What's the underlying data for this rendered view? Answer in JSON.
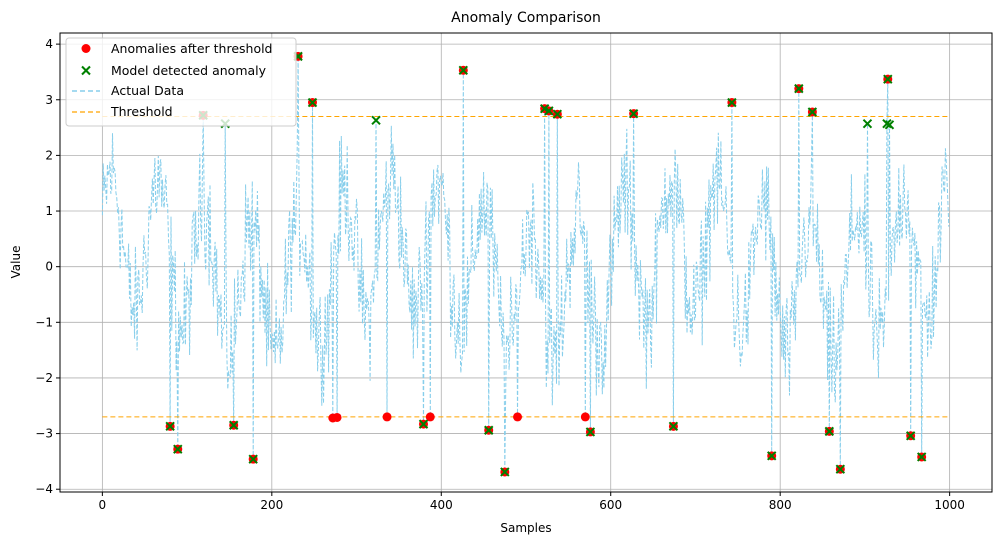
{
  "chart_data": {
    "type": "scatter",
    "title": "Anomaly Comparison",
    "xlabel": "Samples",
    "ylabel": "Value",
    "xlim": [
      -50,
      1050
    ],
    "ylim": [
      -4.05,
      4.2
    ],
    "x_ticks": [
      0,
      200,
      400,
      600,
      800,
      1000
    ],
    "y_ticks": [
      -4,
      -3,
      -2,
      -1,
      0,
      1,
      2,
      3,
      4
    ],
    "grid": true,
    "legend_position": "top-left",
    "colors": {
      "actual": "#87ceeb",
      "threshold": "#ffa500",
      "anomaly": "#ff0000",
      "model": "#008000"
    },
    "legend": [
      {
        "label": "Anomalies after threshold",
        "kind": "dot"
      },
      {
        "label": "Model detected anomaly",
        "kind": "x"
      },
      {
        "label": "Actual Data",
        "kind": "line-blue"
      },
      {
        "label": "Threshold",
        "kind": "line-orange"
      }
    ],
    "threshold": [
      2.7,
      -2.7
    ],
    "actual_data_series": {
      "name": "Actual Data",
      "x_range": [
        0,
        999
      ],
      "points_shown": 1000,
      "approx_y_range": [
        -3.7,
        3.8
      ]
    },
    "anomalies_after_threshold": [
      {
        "x": 80,
        "y": -2.87
      },
      {
        "x": 89,
        "y": -3.28
      },
      {
        "x": 119,
        "y": 2.72
      },
      {
        "x": 155,
        "y": -2.85
      },
      {
        "x": 178,
        "y": -3.46
      },
      {
        "x": 231,
        "y": 3.78
      },
      {
        "x": 248,
        "y": 2.95
      },
      {
        "x": 272,
        "y": -2.72
      },
      {
        "x": 277,
        "y": -2.71
      },
      {
        "x": 336,
        "y": -2.7
      },
      {
        "x": 379,
        "y": -2.83
      },
      {
        "x": 387,
        "y": -2.7
      },
      {
        "x": 426,
        "y": 3.53
      },
      {
        "x": 456,
        "y": -2.94
      },
      {
        "x": 475,
        "y": -3.69
      },
      {
        "x": 490,
        "y": -2.7
      },
      {
        "x": 522,
        "y": 2.84
      },
      {
        "x": 527,
        "y": 2.8
      },
      {
        "x": 537,
        "y": 2.74
      },
      {
        "x": 570,
        "y": -2.7
      },
      {
        "x": 576,
        "y": -2.97
      },
      {
        "x": 627,
        "y": 2.75
      },
      {
        "x": 674,
        "y": -2.87
      },
      {
        "x": 743,
        "y": 2.95
      },
      {
        "x": 790,
        "y": -3.4
      },
      {
        "x": 822,
        "y": 3.2
      },
      {
        "x": 838,
        "y": 2.78
      },
      {
        "x": 858,
        "y": -2.96
      },
      {
        "x": 871,
        "y": -3.64
      },
      {
        "x": 927,
        "y": 3.37
      },
      {
        "x": 954,
        "y": -3.04
      },
      {
        "x": 967,
        "y": -3.42
      }
    ],
    "model_detected_anomaly": [
      {
        "x": 80,
        "y": -2.87
      },
      {
        "x": 89,
        "y": -3.28
      },
      {
        "x": 119,
        "y": 2.72
      },
      {
        "x": 145,
        "y": 2.57
      },
      {
        "x": 155,
        "y": -2.85
      },
      {
        "x": 178,
        "y": -3.46
      },
      {
        "x": 231,
        "y": 3.78
      },
      {
        "x": 248,
        "y": 2.95
      },
      {
        "x": 323,
        "y": 2.63
      },
      {
        "x": 379,
        "y": -2.83
      },
      {
        "x": 426,
        "y": 3.53
      },
      {
        "x": 456,
        "y": -2.94
      },
      {
        "x": 475,
        "y": -3.69
      },
      {
        "x": 522,
        "y": 2.84
      },
      {
        "x": 527,
        "y": 2.8
      },
      {
        "x": 537,
        "y": 2.74
      },
      {
        "x": 576,
        "y": -2.97
      },
      {
        "x": 627,
        "y": 2.75
      },
      {
        "x": 674,
        "y": -2.87
      },
      {
        "x": 743,
        "y": 2.95
      },
      {
        "x": 790,
        "y": -3.4
      },
      {
        "x": 822,
        "y": 3.2
      },
      {
        "x": 838,
        "y": 2.78
      },
      {
        "x": 858,
        "y": -2.96
      },
      {
        "x": 871,
        "y": -3.64
      },
      {
        "x": 903,
        "y": 2.57
      },
      {
        "x": 926,
        "y": 2.57
      },
      {
        "x": 927,
        "y": 3.37
      },
      {
        "x": 929,
        "y": 2.55
      },
      {
        "x": 954,
        "y": -3.04
      },
      {
        "x": 967,
        "y": -3.42
      }
    ]
  }
}
